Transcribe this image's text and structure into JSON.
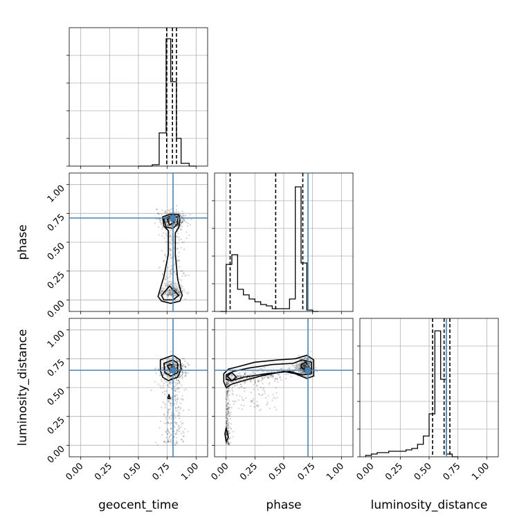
{
  "chart_data": {
    "type": "corner",
    "params": [
      "geocent_time",
      "phase",
      "luminosity_distance"
    ],
    "truths": {
      "geocent_time": 0.8,
      "phase": 0.71,
      "luminosity_distance": 0.65
    },
    "truth_color": "#4682b4",
    "tick_labels": [
      "0.00",
      "0.25",
      "0.50",
      "0.75",
      "1.00"
    ],
    "axis_range": [
      -0.1,
      1.1
    ],
    "grid": true,
    "histograms": {
      "geocent_time": {
        "bin_edges": [
          0.5,
          0.62,
          0.68,
          0.74,
          0.78,
          0.83,
          0.87,
          0.94,
          1.0
        ],
        "counts": [
          0,
          0.01,
          0.24,
          0.92,
          0.61,
          0.2,
          0.02,
          0
        ],
        "quantiles": [
          0.745,
          0.795,
          0.83
        ]
      },
      "phase": {
        "bin_edges": [
          -0.05,
          0.0,
          0.05,
          0.1,
          0.15,
          0.2,
          0.25,
          0.3,
          0.35,
          0.4,
          0.45,
          0.5,
          0.55,
          0.6,
          0.65,
          0.7,
          0.75,
          0.8
        ],
        "counts": [
          0,
          0.34,
          0.41,
          0.16,
          0.12,
          0.09,
          0.07,
          0.05,
          0.04,
          0.02,
          0.02,
          0.02,
          0.09,
          0.9,
          0.35,
          0.01,
          0
        ],
        "quantiles": [
          0.035,
          0.43,
          0.665
        ]
      },
      "luminosity_distance": {
        "bin_edges": [
          -0.05,
          0.0,
          0.05,
          0.1,
          0.15,
          0.2,
          0.25,
          0.3,
          0.35,
          0.4,
          0.45,
          0.5,
          0.55,
          0.6,
          0.65,
          0.7,
          0.75
        ],
        "counts": [
          0.01,
          0.02,
          0.03,
          0.03,
          0.04,
          0.04,
          0.04,
          0.05,
          0.06,
          0.09,
          0.15,
          0.31,
          0.91,
          0.56,
          0.02,
          0
        ],
        "quantiles": [
          0.53,
          0.63,
          0.68
        ]
      }
    },
    "panels_2d": [
      {
        "x": "geocent_time",
        "y": "phase",
        "contours": [
          [
            [
              0.71,
              0.72
            ],
            [
              0.77,
              0.74
            ],
            [
              0.85,
              0.74
            ],
            [
              0.86,
              0.69
            ],
            [
              0.85,
              0.63
            ],
            [
              0.82,
              0.58
            ],
            [
              0.82,
              0.4
            ],
            [
              0.84,
              0.18
            ],
            [
              0.86,
              0.1
            ],
            [
              0.88,
              0.04
            ],
            [
              0.86,
              -0.01
            ],
            [
              0.78,
              -0.03
            ],
            [
              0.7,
              -0.01
            ],
            [
              0.67,
              0.03
            ],
            [
              0.69,
              0.1
            ],
            [
              0.72,
              0.2
            ],
            [
              0.76,
              0.4
            ],
            [
              0.76,
              0.6
            ],
            [
              0.72,
              0.64
            ],
            [
              0.71,
              0.72
            ]
          ],
          [
            [
              0.72,
              0.7
            ],
            [
              0.76,
              0.72
            ],
            [
              0.84,
              0.72
            ],
            [
              0.84,
              0.66
            ],
            [
              0.8,
              0.62
            ],
            [
              0.74,
              0.63
            ],
            [
              0.72,
              0.7
            ]
          ],
          [
            [
              0.75,
              0.7
            ],
            [
              0.79,
              0.71
            ],
            [
              0.81,
              0.67
            ],
            [
              0.77,
              0.65
            ],
            [
              0.75,
              0.7
            ]
          ],
          [
            [
              0.7,
              0.04
            ],
            [
              0.77,
              0.12
            ],
            [
              0.85,
              0.04
            ],
            [
              0.8,
              0.0
            ],
            [
              0.72,
              0.0
            ],
            [
              0.7,
              0.04
            ]
          ]
        ]
      },
      {
        "x": "geocent_time",
        "y": "luminosity_distance",
        "contours": [
          [
            [
              0.69,
              0.74
            ],
            [
              0.8,
              0.78
            ],
            [
              0.86,
              0.74
            ],
            [
              0.87,
              0.66
            ],
            [
              0.84,
              0.59
            ],
            [
              0.76,
              0.56
            ],
            [
              0.71,
              0.59
            ],
            [
              0.69,
              0.65
            ],
            [
              0.69,
              0.74
            ]
          ],
          [
            [
              0.72,
              0.71
            ],
            [
              0.8,
              0.74
            ],
            [
              0.84,
              0.71
            ],
            [
              0.84,
              0.63
            ],
            [
              0.78,
              0.6
            ],
            [
              0.73,
              0.63
            ],
            [
              0.72,
              0.71
            ]
          ],
          [
            [
              0.75,
              0.69
            ],
            [
              0.79,
              0.7
            ],
            [
              0.81,
              0.66
            ],
            [
              0.78,
              0.64
            ],
            [
              0.75,
              0.69
            ]
          ],
          [
            [
              0.755,
              0.405
            ],
            [
              0.765,
              0.44
            ],
            [
              0.775,
              0.405
            ],
            [
              0.755,
              0.405
            ]
          ]
        ]
      },
      {
        "x": "phase",
        "y": "luminosity_distance",
        "contours": [
          [
            [
              -0.02,
              0.62
            ],
            [
              0.02,
              0.66
            ],
            [
              0.1,
              0.68
            ],
            [
              0.25,
              0.72
            ],
            [
              0.45,
              0.74
            ],
            [
              0.6,
              0.75
            ],
            [
              0.7,
              0.78
            ],
            [
              0.76,
              0.74
            ],
            [
              0.76,
              0.6
            ],
            [
              0.7,
              0.58
            ],
            [
              0.6,
              0.62
            ],
            [
              0.5,
              0.64
            ],
            [
              0.3,
              0.6
            ],
            [
              0.15,
              0.56
            ],
            [
              0.05,
              0.53
            ],
            [
              0.0,
              0.5
            ],
            [
              -0.02,
              0.55
            ],
            [
              -0.02,
              0.62
            ]
          ],
          [
            [
              0.0,
              0.61
            ],
            [
              0.06,
              0.64
            ],
            [
              0.2,
              0.67
            ],
            [
              0.4,
              0.7
            ],
            [
              0.58,
              0.71
            ],
            [
              0.66,
              0.74
            ],
            [
              0.74,
              0.72
            ],
            [
              0.74,
              0.62
            ],
            [
              0.66,
              0.61
            ],
            [
              0.55,
              0.64
            ],
            [
              0.35,
              0.62
            ],
            [
              0.15,
              0.59
            ],
            [
              0.05,
              0.56
            ],
            [
              0.0,
              0.57
            ],
            [
              0.0,
              0.61
            ]
          ],
          [
            [
              0.01,
              0.6
            ],
            [
              0.05,
              0.63
            ],
            [
              0.09,
              0.59
            ],
            [
              0.05,
              0.56
            ],
            [
              0.01,
              0.6
            ]
          ],
          [
            [
              0.65,
              0.7
            ],
            [
              0.69,
              0.72
            ],
            [
              0.72,
              0.68
            ],
            [
              0.69,
              0.64
            ],
            [
              0.65,
              0.68
            ],
            [
              0.65,
              0.7
            ]
          ],
          [
            [
              -0.01,
              0.1
            ],
            [
              0.0,
              0.15
            ],
            [
              0.02,
              0.07
            ],
            [
              0.0,
              0.03
            ],
            [
              -0.01,
              0.1
            ]
          ]
        ]
      }
    ]
  }
}
